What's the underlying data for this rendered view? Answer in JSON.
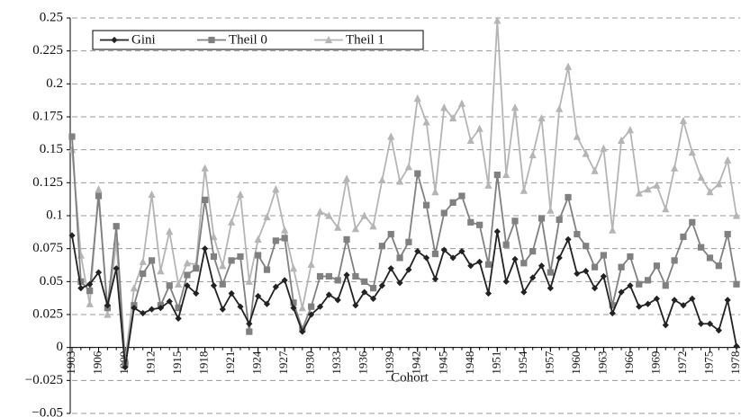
{
  "chart_data": {
    "type": "line",
    "x_label": "Cohort",
    "x": [
      1903,
      1904,
      1905,
      1906,
      1907,
      1908,
      1909,
      1910,
      1911,
      1912,
      1913,
      1914,
      1915,
      1916,
      1917,
      1918,
      1919,
      1920,
      1921,
      1922,
      1923,
      1924,
      1925,
      1926,
      1927,
      1928,
      1929,
      1930,
      1931,
      1932,
      1933,
      1934,
      1935,
      1936,
      1937,
      1938,
      1939,
      1940,
      1941,
      1942,
      1943,
      1944,
      1945,
      1946,
      1947,
      1948,
      1949,
      1950,
      1951,
      1952,
      1953,
      1954,
      1955,
      1956,
      1957,
      1958,
      1959,
      1960,
      1961,
      1962,
      1963,
      1964,
      1965,
      1966,
      1967,
      1968,
      1969,
      1970,
      1971,
      1972,
      1973,
      1974,
      1975,
      1976,
      1977,
      1978
    ],
    "xlim": [
      1903,
      1978
    ],
    "xticks": [
      1903,
      1906,
      1909,
      1912,
      1915,
      1918,
      1921,
      1924,
      1927,
      1930,
      1933,
      1936,
      1939,
      1942,
      1945,
      1948,
      1951,
      1954,
      1957,
      1960,
      1963,
      1966,
      1969,
      1972,
      1975,
      1978
    ],
    "ylim": [
      -0.05,
      0.25
    ],
    "yticks": [
      {
        "value": -0.05,
        "label": "−0.05"
      },
      {
        "value": -0.025,
        "label": "−0.025"
      },
      0,
      0.025,
      0.05,
      0.075,
      0.1,
      0.125,
      0.15,
      0.175,
      0.2,
      0.225,
      0.25
    ],
    "grid": true,
    "legend": "top-left",
    "series": [
      {
        "name": "Gini",
        "color": "#222222",
        "marker": "diamond",
        "values": [
          0.085,
          0.045,
          0.048,
          0.057,
          0.032,
          0.06,
          -0.015,
          0.03,
          0.026,
          0.029,
          0.03,
          0.035,
          0.022,
          0.047,
          0.041,
          0.075,
          0.047,
          0.029,
          0.041,
          0.031,
          0.018,
          0.039,
          0.033,
          0.046,
          0.051,
          0.03,
          0.012,
          0.025,
          0.031,
          0.04,
          0.036,
          0.055,
          0.032,
          0.042,
          0.037,
          0.047,
          0.06,
          0.049,
          0.059,
          0.073,
          0.068,
          0.052,
          0.074,
          0.068,
          0.073,
          0.062,
          0.065,
          0.041,
          0.088,
          0.05,
          0.067,
          0.042,
          0.053,
          0.062,
          0.045,
          0.068,
          0.082,
          0.056,
          0.058,
          0.045,
          0.054,
          0.026,
          0.042,
          0.047,
          0.031,
          0.033,
          0.037,
          0.017,
          0.036,
          0.032,
          0.037,
          0.018,
          0.018,
          0.013,
          0.036,
          0.001
        ]
      },
      {
        "name": "Theil 0",
        "color": "#808080",
        "marker": "square",
        "values": [
          0.16,
          0.05,
          0.043,
          0.115,
          0.03,
          0.092,
          -0.012,
          0.032,
          0.056,
          0.066,
          0.032,
          0.047,
          0.03,
          0.055,
          0.06,
          0.112,
          0.069,
          0.048,
          0.066,
          0.069,
          0.012,
          0.07,
          0.059,
          0.081,
          0.083,
          0.034,
          0.014,
          0.031,
          0.054,
          0.054,
          0.051,
          0.082,
          0.054,
          0.05,
          0.045,
          0.077,
          0.086,
          0.068,
          0.08,
          0.132,
          0.108,
          0.071,
          0.102,
          0.11,
          0.115,
          0.095,
          0.093,
          0.063,
          0.131,
          0.078,
          0.096,
          0.064,
          0.073,
          0.098,
          0.057,
          0.097,
          0.114,
          0.086,
          0.077,
          0.061,
          0.07,
          0.032,
          0.061,
          0.069,
          0.048,
          0.051,
          0.062,
          0.047,
          0.066,
          0.084,
          0.095,
          0.076,
          0.068,
          0.062,
          0.086,
          0.048
        ]
      },
      {
        "name": "Theil 1",
        "color": "#b5b5b5",
        "marker": "triangle",
        "values": [
          0.15,
          0.07,
          0.033,
          0.12,
          0.025,
          0.08,
          -0.01,
          0.045,
          0.065,
          0.116,
          0.058,
          0.088,
          0.048,
          0.064,
          0.063,
          0.136,
          0.084,
          0.062,
          0.095,
          0.116,
          0.05,
          0.082,
          0.099,
          0.12,
          0.089,
          0.06,
          0.03,
          0.063,
          0.103,
          0.1,
          0.091,
          0.128,
          0.09,
          0.1,
          0.092,
          0.127,
          0.16,
          0.126,
          0.137,
          0.189,
          0.171,
          0.118,
          0.182,
          0.174,
          0.185,
          0.157,
          0.166,
          0.123,
          0.248,
          0.131,
          0.182,
          0.119,
          0.146,
          0.174,
          0.104,
          0.181,
          0.213,
          0.16,
          0.147,
          0.134,
          0.151,
          0.089,
          0.157,
          0.165,
          0.117,
          0.12,
          0.123,
          0.105,
          0.136,
          0.172,
          0.148,
          0.129,
          0.118,
          0.124,
          0.142,
          0.1
        ]
      }
    ]
  }
}
